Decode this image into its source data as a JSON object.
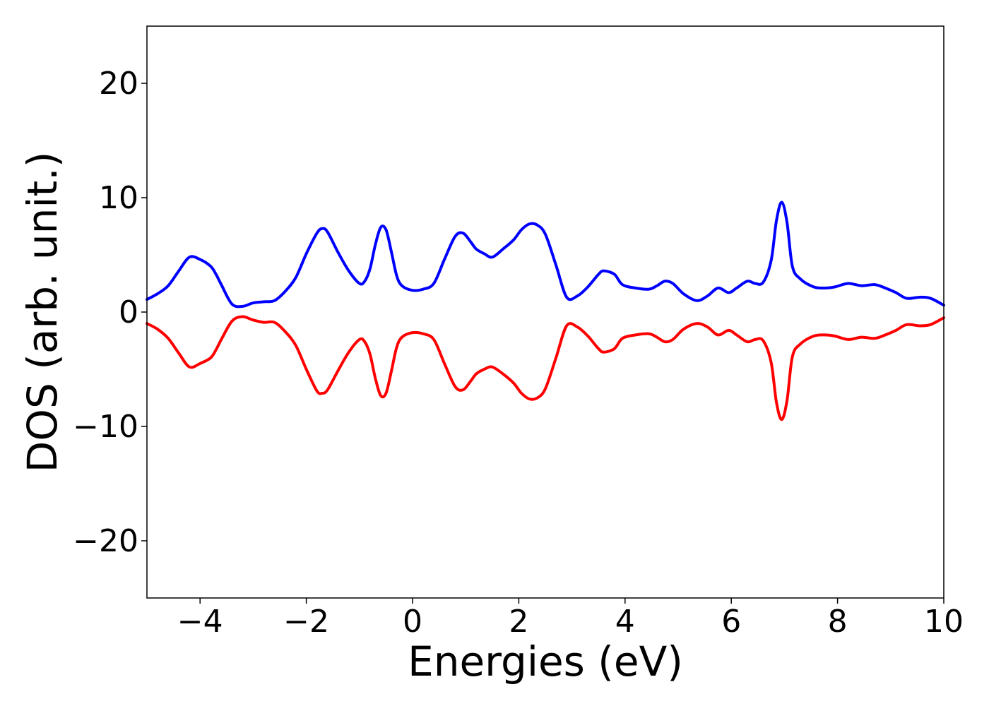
{
  "chart_data": {
    "type": "line",
    "title": "",
    "xlabel": "Energies (eV)",
    "ylabel": "DOS (arb. unit.)",
    "xlim": [
      -5,
      10
    ],
    "ylim": [
      -25,
      25
    ],
    "xticks": [
      -4,
      -2,
      0,
      2,
      4,
      6,
      8,
      10
    ],
    "xtick_labels": [
      "−4",
      "−2",
      "0",
      "2",
      "4",
      "6",
      "8",
      "10"
    ],
    "yticks": [
      -20,
      -10,
      0,
      10,
      20
    ],
    "ytick_labels": [
      "−20",
      "−10",
      "0",
      "10",
      "20"
    ],
    "grid": false,
    "legend": "none",
    "series": [
      {
        "color": "#0000ff",
        "x": [
          -5.0,
          -4.8,
          -4.6,
          -4.4,
          -4.2,
          -4.0,
          -3.8,
          -3.7,
          -3.6,
          -3.4,
          -3.2,
          -3.0,
          -2.8,
          -2.6,
          -2.4,
          -2.2,
          -2.0,
          -1.8,
          -1.7,
          -1.6,
          -1.4,
          -1.2,
          -1.0,
          -0.9,
          -0.8,
          -0.7,
          -0.6,
          -0.5,
          -0.4,
          -0.3,
          -0.2,
          0.0,
          0.2,
          0.4,
          0.6,
          0.8,
          0.95,
          1.1,
          1.2,
          1.35,
          1.5,
          1.7,
          1.9,
          2.05,
          2.2,
          2.35,
          2.5,
          2.7,
          2.9,
          3.1,
          3.3,
          3.5,
          3.6,
          3.8,
          3.95,
          4.2,
          4.45,
          4.6,
          4.75,
          4.9,
          5.1,
          5.35,
          5.55,
          5.75,
          5.95,
          6.1,
          6.3,
          6.45,
          6.6,
          6.75,
          6.85,
          6.95,
          7.05,
          7.15,
          7.3,
          7.55,
          7.75,
          7.95,
          8.2,
          8.45,
          8.7,
          8.9,
          9.1,
          9.3,
          9.55,
          9.75,
          10.0
        ],
        "y": [
          1.1,
          1.6,
          2.3,
          3.6,
          4.8,
          4.6,
          4.0,
          3.3,
          2.4,
          0.7,
          0.5,
          0.8,
          0.9,
          1.0,
          1.8,
          3.0,
          5.1,
          6.9,
          7.3,
          7.0,
          5.2,
          3.6,
          2.5,
          2.7,
          3.8,
          5.9,
          7.4,
          7.2,
          5.3,
          3.2,
          2.3,
          1.9,
          2.0,
          2.5,
          4.6,
          6.6,
          6.9,
          6.1,
          5.5,
          5.1,
          4.8,
          5.5,
          6.3,
          7.2,
          7.7,
          7.6,
          6.8,
          4.1,
          1.3,
          1.4,
          2.2,
          3.3,
          3.6,
          3.3,
          2.4,
          2.1,
          2.0,
          2.3,
          2.7,
          2.5,
          1.6,
          1.0,
          1.4,
          2.1,
          1.7,
          2.1,
          2.7,
          2.5,
          2.6,
          4.5,
          8.0,
          9.6,
          7.8,
          4.0,
          2.9,
          2.2,
          2.1,
          2.2,
          2.5,
          2.3,
          2.4,
          2.1,
          1.7,
          1.2,
          1.3,
          1.2,
          0.6
        ]
      },
      {
        "color": "#ff0000",
        "x": [
          -5.0,
          -4.8,
          -4.6,
          -4.4,
          -4.2,
          -4.0,
          -3.8,
          -3.7,
          -3.6,
          -3.4,
          -3.2,
          -3.0,
          -2.8,
          -2.6,
          -2.4,
          -2.2,
          -2.0,
          -1.8,
          -1.7,
          -1.6,
          -1.4,
          -1.2,
          -1.0,
          -0.9,
          -0.8,
          -0.7,
          -0.6,
          -0.5,
          -0.4,
          -0.3,
          -0.2,
          0.0,
          0.2,
          0.4,
          0.6,
          0.8,
          0.95,
          1.1,
          1.2,
          1.35,
          1.5,
          1.7,
          1.9,
          2.05,
          2.2,
          2.35,
          2.5,
          2.7,
          2.9,
          3.1,
          3.3,
          3.5,
          3.6,
          3.8,
          3.95,
          4.2,
          4.45,
          4.6,
          4.75,
          4.9,
          5.1,
          5.35,
          5.55,
          5.75,
          5.95,
          6.1,
          6.3,
          6.45,
          6.6,
          6.75,
          6.85,
          6.95,
          7.05,
          7.15,
          7.3,
          7.55,
          7.75,
          7.95,
          8.2,
          8.45,
          8.7,
          8.9,
          9.1,
          9.3,
          9.55,
          9.75,
          10.0
        ],
        "y": [
          -1.0,
          -1.5,
          -2.3,
          -3.6,
          -4.8,
          -4.5,
          -4.0,
          -3.3,
          -2.4,
          -0.8,
          -0.4,
          -0.7,
          -0.9,
          -0.9,
          -1.7,
          -2.9,
          -5.0,
          -6.9,
          -7.1,
          -6.8,
          -5.1,
          -3.5,
          -2.4,
          -2.6,
          -3.7,
          -5.8,
          -7.3,
          -7.1,
          -5.2,
          -3.1,
          -2.2,
          -1.8,
          -1.9,
          -2.4,
          -4.5,
          -6.5,
          -6.8,
          -6.0,
          -5.4,
          -5.0,
          -4.8,
          -5.4,
          -6.2,
          -7.1,
          -7.6,
          -7.5,
          -6.7,
          -4.0,
          -1.2,
          -1.3,
          -2.1,
          -3.2,
          -3.5,
          -3.2,
          -2.3,
          -2.0,
          -1.9,
          -2.2,
          -2.6,
          -2.4,
          -1.5,
          -1.0,
          -1.3,
          -2.0,
          -1.6,
          -2.0,
          -2.6,
          -2.4,
          -2.5,
          -4.4,
          -7.9,
          -9.4,
          -7.7,
          -3.9,
          -2.8,
          -2.1,
          -2.0,
          -2.1,
          -2.4,
          -2.2,
          -2.3,
          -2.0,
          -1.6,
          -1.1,
          -1.2,
          -1.1,
          -0.5
        ]
      }
    ]
  }
}
